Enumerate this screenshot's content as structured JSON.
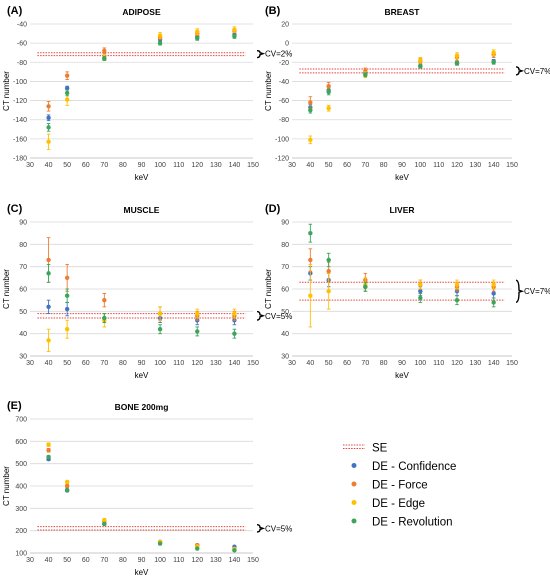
{
  "colors": {
    "se": "#e0463c",
    "confidence": "#4472c4",
    "force": "#ed7d31",
    "edge": "#ffc000",
    "revolution": "#3aa55b"
  },
  "legend": {
    "entries": [
      {
        "key": "se",
        "label": "SE",
        "style": "dotted-line"
      },
      {
        "key": "confidence",
        "label": "DE - Confidence",
        "style": "dot"
      },
      {
        "key": "force",
        "label": "DE - Force",
        "style": "dot"
      },
      {
        "key": "edge",
        "label": "DE - Edge",
        "style": "dot"
      },
      {
        "key": "revolution",
        "label": "DE - Revolution",
        "style": "dot"
      }
    ]
  },
  "chart_data": [
    {
      "panel": "(A)",
      "title": "ADIPOSE",
      "type": "scatter",
      "xlabel": "keV",
      "ylabel": "CT number",
      "xlim": [
        30,
        150
      ],
      "xticks": [
        30,
        40,
        50,
        60,
        70,
        80,
        90,
        100,
        110,
        120,
        130,
        140,
        150
      ],
      "ylim": [
        -180,
        -40
      ],
      "yticks": [
        -180,
        -160,
        -140,
        -120,
        -100,
        -80,
        -60,
        -40
      ],
      "grid": "horizontal",
      "legend": "shared-bottom-right",
      "se_band": [
        -73,
        -70
      ],
      "cv": {
        "label": "CV=2%",
        "y": -71
      },
      "x": [
        40,
        50,
        70,
        100,
        120,
        140
      ],
      "series": [
        {
          "key": "confidence",
          "values": [
            -138,
            -107,
            -76,
            -56,
            -53,
            -51
          ],
          "err": [
            3,
            2,
            2,
            2,
            2,
            2
          ]
        },
        {
          "key": "force",
          "values": [
            -126,
            -94,
            -68,
            -54,
            -50,
            -47
          ],
          "err": [
            5,
            4,
            3,
            2,
            2,
            2
          ]
        },
        {
          "key": "edge",
          "values": [
            -163,
            -119,
            -75,
            -52,
            -48,
            -46
          ],
          "err": [
            8,
            6,
            3,
            3,
            3,
            3
          ]
        },
        {
          "key": "revolution",
          "values": [
            -148,
            -112,
            -76,
            -60,
            -55,
            -53
          ],
          "err": [
            4,
            3,
            2,
            2,
            2,
            2
          ]
        }
      ]
    },
    {
      "panel": "(B)",
      "title": "BREAST",
      "type": "scatter",
      "xlabel": "keV",
      "ylabel": "CT number",
      "xlim": [
        30,
        150
      ],
      "xticks": [
        30,
        40,
        50,
        60,
        70,
        80,
        90,
        100,
        110,
        120,
        130,
        140,
        150
      ],
      "ylim": [
        -120,
        20
      ],
      "yticks": [
        -120,
        -100,
        -80,
        -60,
        -40,
        -20,
        0,
        20
      ],
      "grid": "horizontal",
      "legend": "shared-bottom-right",
      "se_band": [
        -31,
        -27
      ],
      "cv": {
        "label": "CV=7%",
        "y": -29
      },
      "x": [
        40,
        50,
        70,
        100,
        120,
        140
      ],
      "series": [
        {
          "key": "confidence",
          "values": [
            -67,
            -49,
            -31,
            -24,
            -21,
            -19
          ],
          "err": [
            3,
            3,
            2,
            2,
            2,
            2
          ]
        },
        {
          "key": "force",
          "values": [
            -62,
            -45,
            -29,
            -19,
            -15,
            -12
          ],
          "err": [
            6,
            4,
            3,
            3,
            3,
            3
          ]
        },
        {
          "key": "edge",
          "values": [
            -101,
            -68,
            -33,
            -18,
            -13,
            -10
          ],
          "err": [
            4,
            3,
            3,
            3,
            3,
            3
          ]
        },
        {
          "key": "revolution",
          "values": [
            -70,
            -51,
            -33,
            -24,
            -21,
            -20
          ],
          "err": [
            3,
            3,
            2,
            2,
            2,
            2
          ]
        }
      ]
    },
    {
      "panel": "(C)",
      "title": "MUSCLE",
      "type": "scatter",
      "xlabel": "keV",
      "ylabel": "CT number",
      "xlim": [
        30,
        150
      ],
      "xticks": [
        30,
        40,
        50,
        60,
        70,
        80,
        90,
        100,
        110,
        120,
        130,
        140,
        150
      ],
      "ylim": [
        30,
        90
      ],
      "yticks": [
        30,
        40,
        50,
        60,
        70,
        80,
        90
      ],
      "grid": "horizontal",
      "legend": "shared-bottom-right",
      "se_band": [
        47,
        49
      ],
      "cv": {
        "label": "CV=5%",
        "y": 48
      },
      "x": [
        40,
        50,
        70,
        100,
        120,
        140
      ],
      "series": [
        {
          "key": "confidence",
          "values": [
            52,
            51,
            47,
            47,
            46,
            46
          ],
          "err": [
            3,
            3,
            2,
            2,
            2,
            2
          ]
        },
        {
          "key": "force",
          "values": [
            73,
            65,
            55,
            49,
            48,
            48
          ],
          "err": [
            10,
            6,
            3,
            3,
            2,
            2
          ]
        },
        {
          "key": "edge",
          "values": [
            37,
            42,
            46,
            49,
            49,
            49
          ],
          "err": [
            5,
            4,
            3,
            3,
            2,
            2
          ]
        },
        {
          "key": "revolution",
          "values": [
            67,
            57,
            47,
            42,
            41,
            40
          ],
          "err": [
            4,
            3,
            2,
            2,
            2,
            2
          ]
        }
      ]
    },
    {
      "panel": "(D)",
      "title": "LIVER",
      "type": "scatter",
      "xlabel": "keV",
      "ylabel": "CT number",
      "xlim": [
        30,
        150
      ],
      "xticks": [
        30,
        40,
        50,
        60,
        70,
        80,
        90,
        100,
        110,
        120,
        130,
        140,
        150
      ],
      "ylim": [
        30,
        90
      ],
      "yticks": [
        30,
        40,
        50,
        60,
        70,
        80,
        90
      ],
      "grid": "horizontal",
      "legend": "shared-bottom-right",
      "se_band": [
        55,
        63
      ],
      "cv": {
        "label": "CV=7%",
        "y": 59
      },
      "x": [
        40,
        50,
        70,
        100,
        120,
        140
      ],
      "series": [
        {
          "key": "confidence",
          "values": [
            67,
            64,
            61,
            59,
            59,
            58
          ],
          "err": [
            3,
            3,
            2,
            2,
            2,
            2
          ]
        },
        {
          "key": "force",
          "values": [
            73,
            68,
            64,
            62,
            61,
            61
          ],
          "err": [
            5,
            4,
            3,
            2,
            2,
            2
          ]
        },
        {
          "key": "edge",
          "values": [
            57,
            59,
            62,
            62,
            62,
            62
          ],
          "err": [
            14,
            8,
            3,
            2,
            2,
            2
          ]
        },
        {
          "key": "revolution",
          "values": [
            85,
            73,
            61,
            56,
            55,
            54
          ],
          "err": [
            4,
            3,
            2,
            2,
            2,
            2
          ]
        }
      ]
    },
    {
      "panel": "(E)",
      "title": "BONE 200mg",
      "type": "scatter",
      "xlabel": "keV",
      "ylabel": "CT number",
      "xlim": [
        30,
        150
      ],
      "xticks": [
        30,
        40,
        50,
        60,
        70,
        80,
        90,
        100,
        110,
        120,
        130,
        140,
        150
      ],
      "ylim": [
        100,
        700
      ],
      "yticks": [
        100,
        200,
        300,
        400,
        500,
        600,
        700
      ],
      "grid": "horizontal",
      "legend": "shared-bottom-right",
      "se_band": [
        203,
        218
      ],
      "cv": {
        "label": "CV=5%",
        "y": 210
      },
      "x": [
        40,
        50,
        70,
        100,
        120,
        140
      ],
      "series": [
        {
          "key": "confidence",
          "values": [
            520,
            380,
            230,
            150,
            135,
            128
          ],
          "err": [
            6,
            6,
            5,
            5,
            4,
            4
          ]
        },
        {
          "key": "force",
          "values": [
            560,
            400,
            240,
            150,
            135,
            118
          ],
          "err": [
            8,
            7,
            5,
            5,
            4,
            4
          ]
        },
        {
          "key": "edge",
          "values": [
            585,
            418,
            248,
            150,
            130,
            118
          ],
          "err": [
            8,
            7,
            5,
            5,
            4,
            4
          ]
        },
        {
          "key": "revolution",
          "values": [
            530,
            382,
            230,
            142,
            120,
            112
          ],
          "err": [
            6,
            6,
            5,
            5,
            4,
            4
          ]
        }
      ]
    }
  ]
}
